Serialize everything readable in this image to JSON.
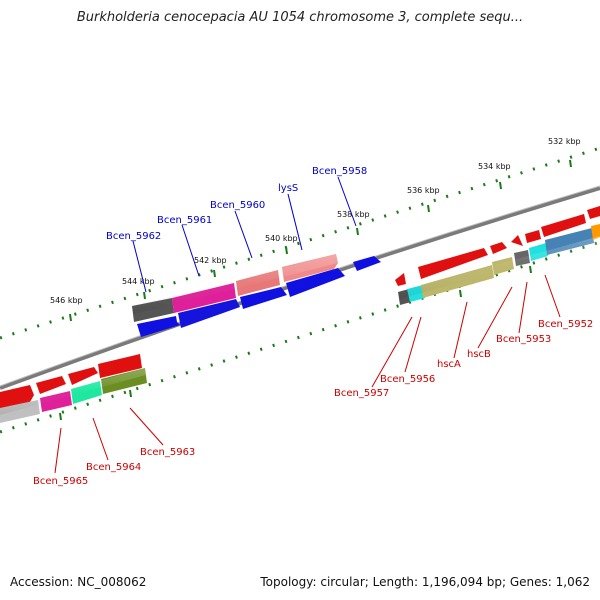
{
  "title": "Burkholderia cenocepacia AU 1054 chromosome 3, complete sequ...",
  "footer": {
    "accession": "Accession: NC_008062",
    "topology": "Topology: circular; Length: 1,196,094 bp; Genes: 1,062"
  },
  "ticks": [
    "532 kbp",
    "534 kbp",
    "536 kbp",
    "538 kbp",
    "540 kbp",
    "542 kbp",
    "544 kbp",
    "546 kbp"
  ],
  "genes_top": [
    "Bcen_5962",
    "Bcen_5961",
    "Bcen_5960",
    "lysS",
    "Bcen_5958"
  ],
  "genes_bottom": [
    "Bcen_5957",
    "Bcen_5956",
    "hscA",
    "hscB",
    "Bcen_5953",
    "Bcen_5952",
    "Bcen_5965",
    "Bcen_5964",
    "Bcen_5963"
  ],
  "colors": {
    "forward_label": "#0000cc",
    "reverse_label": "#cc0000",
    "tick": "#1a7a1a",
    "backbone": "#777777"
  }
}
